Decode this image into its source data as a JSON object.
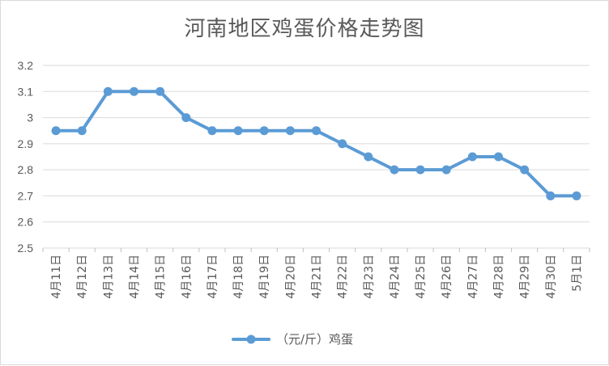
{
  "chart_data": {
    "type": "line",
    "title": "河南地区鸡蛋价格走势图",
    "xlabel": "",
    "ylabel": "",
    "categories": [
      "4月11日",
      "4月12日",
      "4月13日",
      "4月14日",
      "4月15日",
      "4月16日",
      "4月17日",
      "4月18日",
      "4月19日",
      "4月20日",
      "4月21日",
      "4月22日",
      "4月23日",
      "4月24日",
      "4月25日",
      "4月26日",
      "4月27日",
      "4月28日",
      "4月29日",
      "4月30日",
      "5月1日"
    ],
    "series": [
      {
        "name": "（元/斤）鸡蛋",
        "values": [
          2.95,
          2.95,
          3.1,
          3.1,
          3.1,
          3.0,
          2.95,
          2.95,
          2.95,
          2.95,
          2.95,
          2.9,
          2.85,
          2.8,
          2.8,
          2.8,
          2.85,
          2.85,
          2.8,
          2.7,
          2.7
        ]
      }
    ],
    "ylim": [
      2.5,
      3.2
    ],
    "yticks": [
      "2.5",
      "2.6",
      "2.7",
      "2.8",
      "2.9",
      "3",
      "3.1",
      "3.2"
    ],
    "grid": true,
    "legend_position": "bottom",
    "series_color": "#5b9bd5"
  }
}
